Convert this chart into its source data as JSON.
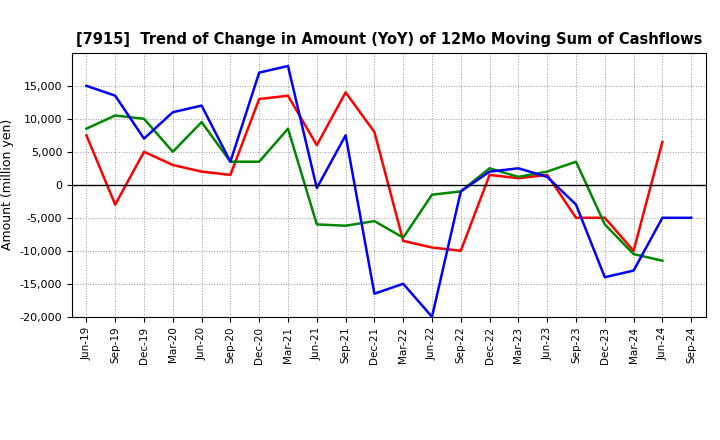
{
  "title": "[7915]  Trend of Change in Amount (YoY) of 12Mo Moving Sum of Cashflows",
  "ylabel": "Amount (million yen)",
  "x_labels": [
    "Jun-19",
    "Sep-19",
    "Dec-19",
    "Mar-20",
    "Jun-20",
    "Sep-20",
    "Dec-20",
    "Mar-21",
    "Jun-21",
    "Sep-21",
    "Dec-21",
    "Mar-22",
    "Jun-22",
    "Sep-22",
    "Dec-22",
    "Mar-23",
    "Jun-23",
    "Sep-23",
    "Dec-23",
    "Mar-24",
    "Jun-24",
    "Sep-24"
  ],
  "operating_cashflow": [
    7500,
    -3000,
    5000,
    3000,
    2000,
    1500,
    13000,
    13500,
    6000,
    14000,
    8000,
    -8500,
    -9500,
    -10000,
    1500,
    1000,
    1500,
    -5000,
    -5000,
    -10000,
    6500,
    null
  ],
  "investing_cashflow": [
    8500,
    10500,
    10000,
    5000,
    9500,
    3500,
    3500,
    8500,
    -6000,
    -6200,
    -5500,
    -8000,
    -1500,
    -1000,
    2500,
    1200,
    2000,
    3500,
    -6000,
    -10500,
    -11500,
    null
  ],
  "free_cashflow": [
    15000,
    13500,
    7000,
    11000,
    12000,
    3500,
    17000,
    18000,
    -500,
    7500,
    -16500,
    -15000,
    -20000,
    -1000,
    2000,
    2500,
    1200,
    -3000,
    -14000,
    -13000,
    -5000,
    -5000
  ],
  "ylim": [
    -20000,
    20000
  ],
  "ytick_values": [
    -20000,
    -15000,
    -10000,
    -5000,
    0,
    5000,
    10000,
    15000
  ],
  "colors": {
    "operating": "#ff0000",
    "investing": "#008800",
    "free": "#0000ff"
  },
  "background_color": "#ffffff",
  "grid_color": "#999999"
}
